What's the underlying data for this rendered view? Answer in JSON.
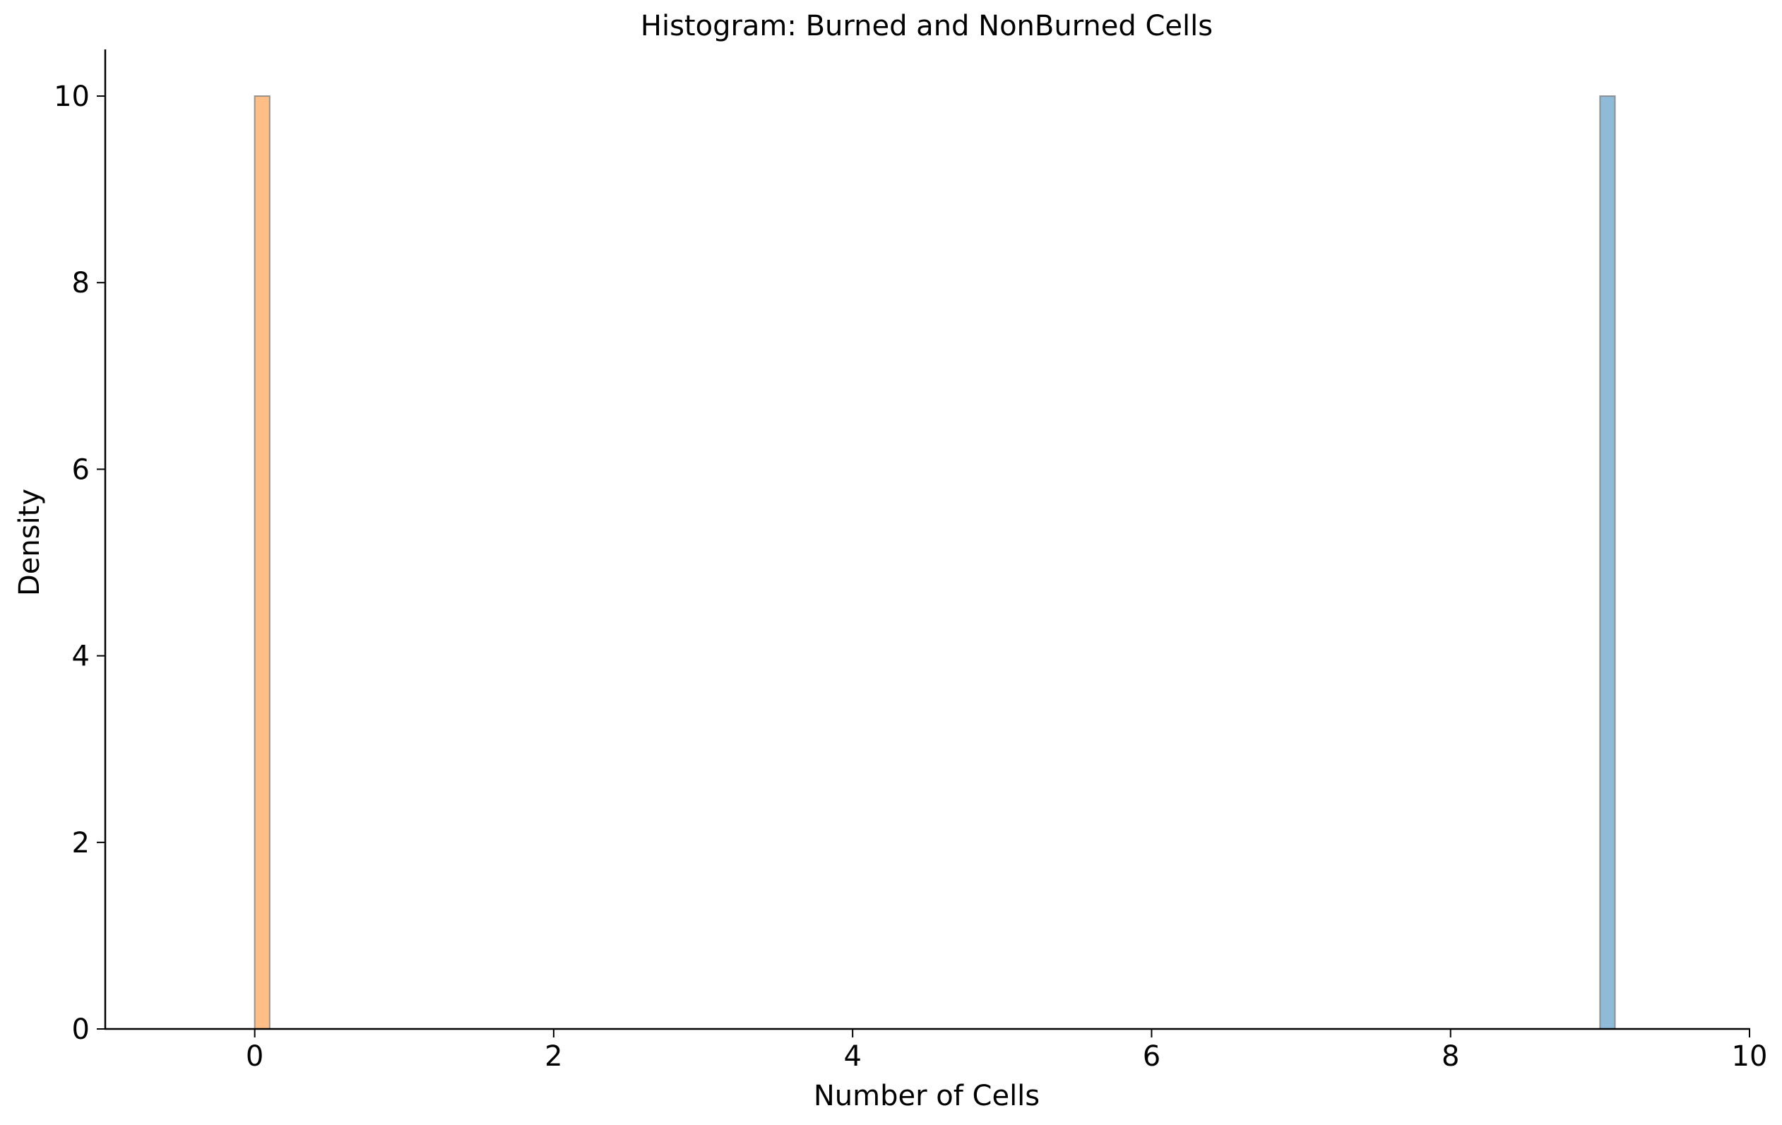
{
  "chart_data": {
    "type": "bar",
    "title": "Histogram: Burned and NonBurned Cells",
    "xlabel": "Number of Cells",
    "ylabel": "Density",
    "xlim": [
      -1,
      10
    ],
    "ylim": [
      0,
      10.5
    ],
    "xticks": [
      0,
      2,
      4,
      6,
      8,
      10
    ],
    "yticks": [
      0,
      2,
      4,
      6,
      8,
      10
    ],
    "grid": false,
    "series": [
      {
        "bins": [
          {
            "x0": 0.0,
            "x1": 0.1,
            "density": 10
          }
        ],
        "color": "#ffbe86"
      },
      {
        "bins": [
          {
            "x0": 9.0,
            "x1": 9.1,
            "density": 10
          }
        ],
        "color": "#8fbbd9"
      }
    ]
  }
}
